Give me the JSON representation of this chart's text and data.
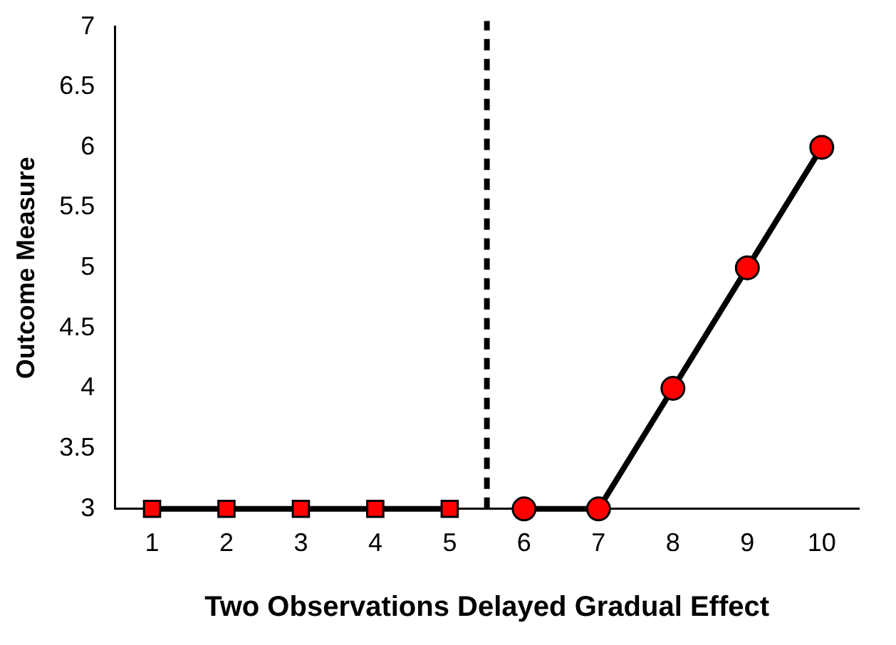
{
  "chart_data": {
    "type": "line",
    "xlabel": "Two Observations Delayed Gradual Effect",
    "ylabel": "Outcome Measure",
    "xlim": [
      0.5,
      10.5
    ],
    "xticks": [
      1,
      2,
      3,
      4,
      5,
      6,
      7,
      8,
      9,
      10
    ],
    "ylim": [
      3,
      7
    ],
    "yticks": [
      3,
      3.5,
      4,
      4.5,
      5,
      5.5,
      6,
      6.5,
      7
    ],
    "grid": false,
    "legend": false,
    "series": [
      {
        "color": "#ff0000",
        "marker": "square",
        "x": [
          1,
          2,
          3,
          4,
          5
        ],
        "values": [
          3,
          3,
          3,
          3,
          3
        ]
      },
      {
        "color": "#ff0000",
        "marker": "circle",
        "x": [
          6,
          7,
          8,
          9,
          10
        ],
        "values": [
          3,
          3,
          4,
          5,
          6
        ]
      }
    ],
    "ref_lines": [
      {
        "axis": "x",
        "value": 5.5,
        "line_style": "dashed",
        "color": "#000000"
      }
    ]
  }
}
